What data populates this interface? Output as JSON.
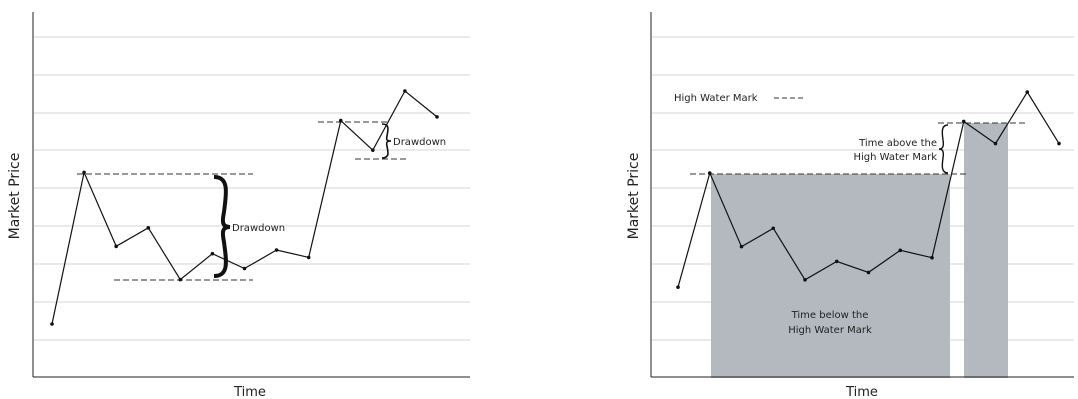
{
  "colors": {
    "grid": "#d6d6d6",
    "axis": "#222222",
    "line": "#111111",
    "fill": "#b4b9c0"
  },
  "chart_data": [
    {
      "type": "line",
      "title": "",
      "xlabel": "Time",
      "ylabel": "Market Price",
      "grid": true,
      "x": [
        1,
        2,
        3,
        4,
        5,
        6,
        7,
        8,
        9,
        10,
        11,
        12,
        13
      ],
      "y": [
        1.3,
        5.4,
        3.4,
        3.9,
        2.5,
        3.2,
        2.8,
        3.3,
        3.1,
        6.8,
        6.0,
        7.6,
        6.9
      ],
      "annotations": [
        {
          "type": "dashed-level",
          "at": "peak",
          "y": 5.4
        },
        {
          "type": "dashed-level",
          "at": "trough",
          "y": 2.5
        },
        {
          "type": "brace",
          "label": "Drawdown",
          "from": 5.4,
          "to": 2.5
        },
        {
          "type": "dashed-level",
          "at": "peak",
          "y": 6.8
        },
        {
          "type": "dashed-level",
          "at": "trough",
          "y": 6.0
        },
        {
          "type": "brace",
          "label": "Drawdown",
          "from": 6.8,
          "to": 6.0
        }
      ]
    },
    {
      "type": "line",
      "title": "",
      "xlabel": "Time",
      "ylabel": "Market Price",
      "grid": true,
      "x": [
        1,
        2,
        3,
        4,
        5,
        6,
        7,
        8,
        9,
        10,
        11,
        12,
        13
      ],
      "y": [
        2.3,
        5.4,
        3.4,
        3.9,
        2.5,
        3.0,
        2.7,
        3.3,
        3.1,
        6.8,
        6.2,
        7.6,
        6.2
      ],
      "legend": {
        "label": "High Water Mark",
        "symbol": "dashed-line",
        "placement": "top-left"
      },
      "high_water_marks": [
        5.4,
        6.8
      ],
      "annotations": [
        {
          "type": "shaded-region",
          "label": "Time below the High Water Mark",
          "from_x": 2,
          "to_x": 9.6
        },
        {
          "type": "shaded-region",
          "label": "",
          "from_x": 10,
          "to_x": 11.3
        },
        {
          "type": "brace",
          "label": "Time above the High Water Mark",
          "from": 6.8,
          "to": 5.4
        }
      ],
      "labels": {
        "below_line1": "Time below the",
        "below_line2": "High Water Mark",
        "above_line1": "Time above the",
        "above_line2": "High Water Mark"
      }
    }
  ]
}
